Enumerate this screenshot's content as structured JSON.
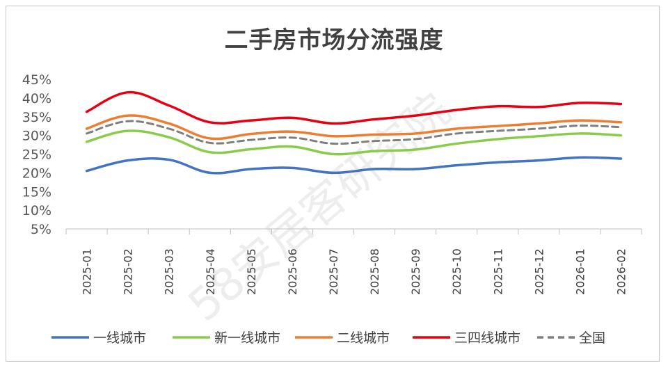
{
  "chart_data": {
    "type": "line",
    "title": "二手房市场分流强度",
    "xlabel": "",
    "ylabel": "",
    "categories": [
      "2025-01",
      "2025-02",
      "2025-03",
      "2025-04",
      "2025-05",
      "2025-06",
      "2025-07",
      "2025-08",
      "2025-09",
      "2025-10",
      "2025-11",
      "2025-12",
      "2026-01",
      "2026-02"
    ],
    "y_ticks": [
      "5%",
      "10%",
      "15%",
      "20%",
      "25%",
      "30%",
      "35%",
      "40%",
      "45%"
    ],
    "ylim": [
      5,
      45
    ],
    "grid": false,
    "legend_position": "bottom",
    "series": [
      {
        "name": "一线城市",
        "color": "#4472C4",
        "dash": false,
        "values": [
          20.5,
          23.3,
          23.5,
          20.0,
          21.0,
          21.3,
          20.0,
          21.0,
          21.0,
          22.0,
          22.8,
          23.3,
          24.1,
          23.8
        ]
      },
      {
        "name": "新一线城市",
        "color": "#8BCB4C",
        "dash": false,
        "values": [
          28.3,
          31.2,
          29.5,
          25.5,
          26.3,
          27.0,
          25.0,
          25.8,
          26.2,
          27.8,
          29.0,
          29.8,
          30.5,
          30.0
        ]
      },
      {
        "name": "二线城市",
        "color": "#ED7D31",
        "dash": false,
        "values": [
          31.8,
          35.3,
          33.2,
          29.2,
          30.4,
          31.0,
          29.8,
          30.2,
          30.5,
          31.8,
          32.5,
          33.2,
          34.0,
          33.5
        ]
      },
      {
        "name": "三四线城市",
        "color": "#E60012",
        "dash": false,
        "values": [
          36.3,
          41.5,
          38.0,
          33.5,
          34.0,
          34.7,
          33.2,
          34.3,
          35.3,
          36.8,
          37.8,
          37.6,
          38.7,
          38.4
        ]
      },
      {
        "name": "全国",
        "color": "#7F7F7F",
        "dash": true,
        "values": [
          30.5,
          33.8,
          31.8,
          28.0,
          28.8,
          29.4,
          27.8,
          28.5,
          29.0,
          30.5,
          31.2,
          31.8,
          32.6,
          32.2
        ]
      }
    ],
    "watermark": "58安居客研究院"
  }
}
